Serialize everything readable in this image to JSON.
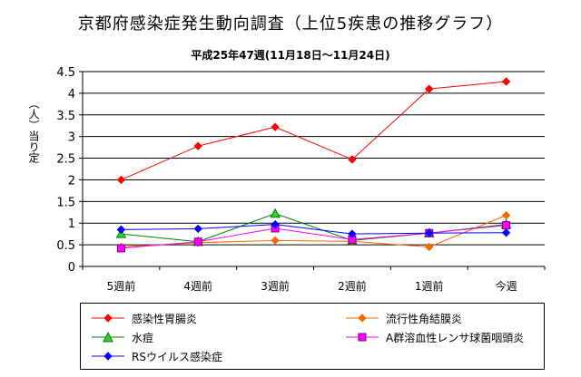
{
  "title": "京都府感染症発生動向調査（上位5疾患の推移グラフ）",
  "subtitle": "平成25年47週(11月18日～11月24日)",
  "chart_data": {
    "type": "line",
    "categories": [
      "5週前",
      "4週前",
      "3週前",
      "2週前",
      "1週前",
      "今週"
    ],
    "ylabel": "（人）当り定",
    "ylim": [
      0,
      4.5
    ],
    "yticks": [
      "0",
      "0.5",
      "1",
      "1.5",
      "2",
      "2.5",
      "3",
      "3.5",
      "4",
      "4.5"
    ],
    "grid": true,
    "legend_position": "bottom",
    "series": [
      {
        "name": "感染性胃腸炎",
        "values": [
          2.0,
          2.78,
          3.22,
          2.47,
          4.1,
          4.27
        ],
        "color": "#ff0000",
        "marker": "diamond",
        "marker_color": "#ff0000"
      },
      {
        "name": "流行性角結膜炎",
        "values": [
          0.45,
          0.55,
          0.6,
          0.58,
          0.45,
          1.18
        ],
        "color": "#ff6600",
        "marker": "diamond",
        "marker_color": "#ff6600"
      },
      {
        "name": "水痘",
        "values": [
          0.75,
          0.57,
          1.22,
          0.6,
          0.77,
          0.97
        ],
        "color": "#008000",
        "marker": "triangle",
        "marker_color": "#33cc33"
      },
      {
        "name": "A群溶血性レンサ球菌咽頭炎",
        "values": [
          0.42,
          0.57,
          0.88,
          0.62,
          0.77,
          0.95
        ],
        "color": "#ff00ff",
        "marker": "square",
        "marker_color": "#ff00ff"
      },
      {
        "name": "RSウイルス感染症",
        "values": [
          0.85,
          0.87,
          0.97,
          0.75,
          0.77,
          0.78
        ],
        "color": "#0000ff",
        "marker": "diamond",
        "marker_color": "#0000ff"
      }
    ]
  }
}
